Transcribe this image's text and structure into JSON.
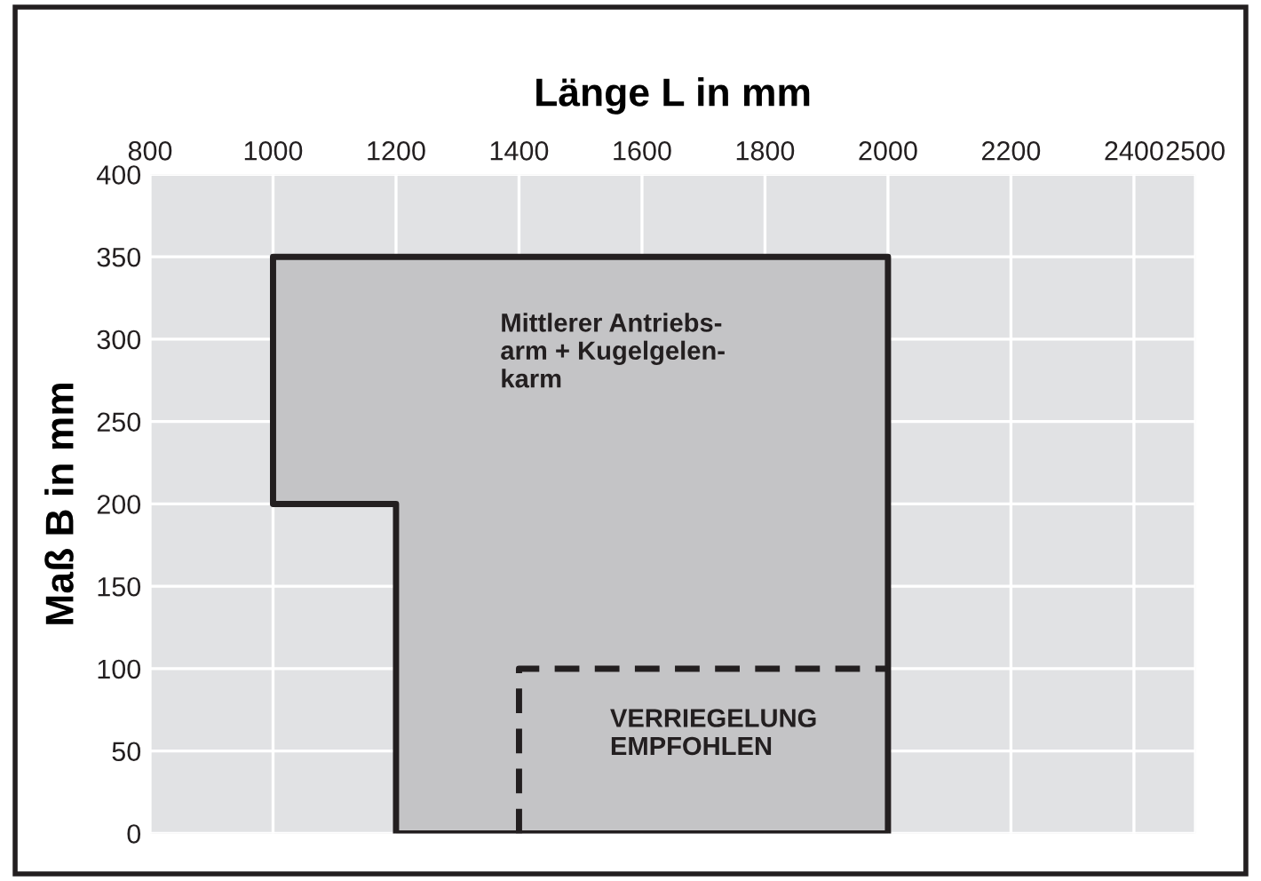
{
  "chart_data": {
    "type": "area",
    "xlabel": "Länge L in mm",
    "ylabel": "Maß B in mm",
    "xlim": [
      800,
      2500
    ],
    "xticks": [
      800,
      1000,
      1200,
      1400,
      1600,
      1800,
      2000,
      2200,
      2400,
      2500
    ],
    "ylim": [
      0,
      400
    ],
    "yticks": [
      0,
      50,
      100,
      150,
      200,
      250,
      300,
      350,
      400
    ],
    "grid": true,
    "series": [
      {
        "color": "#c4c4c6",
        "x": [
          1000,
          1000,
          2000,
          2000,
          1200,
          1200,
          1000
        ],
        "values": [
          200,
          350,
          350,
          0,
          0,
          200,
          200
        ]
      },
      {
        "type": "line",
        "color": "#231f20",
        "line_style": "dashed",
        "x": [
          1400,
          1400,
          2000
        ],
        "values": [
          0,
          100,
          100
        ]
      }
    ],
    "annotations": [
      "Mittlerer Antriebs-\narm + Kugelgelen-\nkarm",
      "VERRIEGELUNG\nEMPFOHLEN"
    ]
  }
}
